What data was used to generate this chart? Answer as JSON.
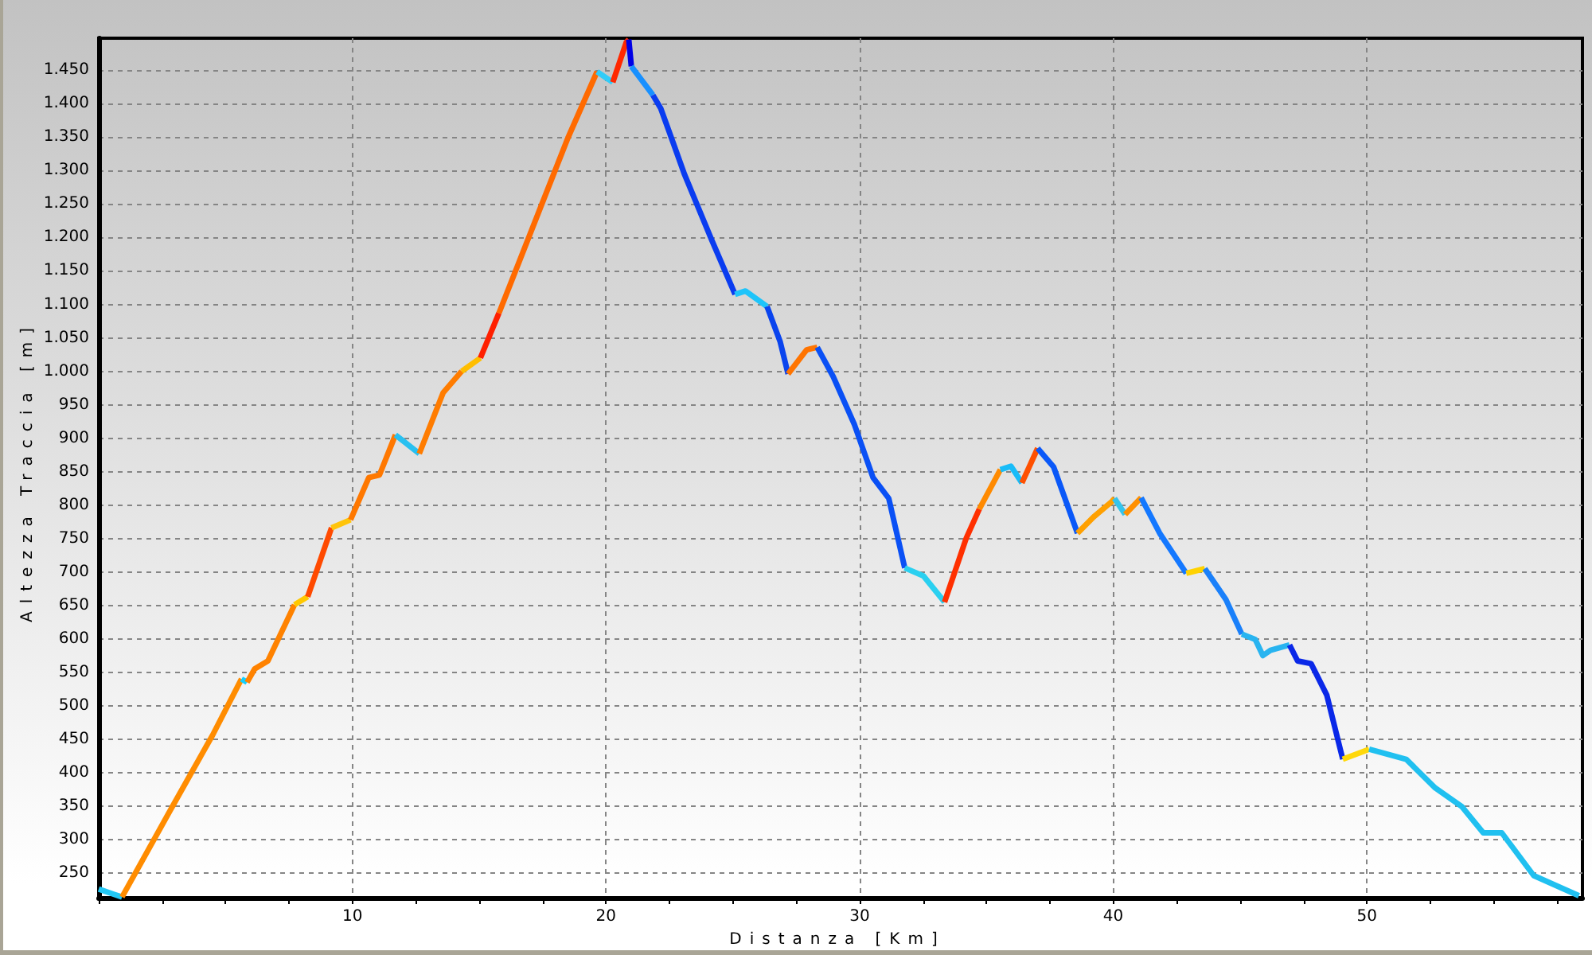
{
  "chart_data": {
    "type": "line",
    "xlabel": "Distanza [Km]",
    "ylabel": "Altezza Traccia [m]",
    "xlim": [
      0,
      58.5
    ],
    "ylim": [
      213,
      1498
    ],
    "xticks": [
      {
        "value": 0,
        "label": null
      },
      {
        "value": 2.5,
        "label": null
      },
      {
        "value": 5,
        "label": null
      },
      {
        "value": 7.5,
        "label": null
      },
      10,
      {
        "value": 12.5,
        "label": null
      },
      {
        "value": 15,
        "label": null
      },
      {
        "value": 17.5,
        "label": null
      },
      20,
      {
        "value": 22.5,
        "label": null
      },
      {
        "value": 25,
        "label": null
      },
      {
        "value": 27.5,
        "label": null
      },
      30,
      {
        "value": 32.5,
        "label": null
      },
      {
        "value": 35,
        "label": null
      },
      {
        "value": 37.5,
        "label": null
      },
      40,
      {
        "value": 42.5,
        "label": null
      },
      {
        "value": 45,
        "label": null
      },
      {
        "value": 47.5,
        "label": null
      },
      50,
      {
        "value": 52.5,
        "label": null
      },
      {
        "value": 55,
        "label": null
      },
      {
        "value": 57.5,
        "label": null
      }
    ],
    "yticks": [
      250,
      300,
      350,
      400,
      450,
      500,
      550,
      600,
      650,
      700,
      750,
      800,
      850,
      900,
      950,
      {
        "value": 1000,
        "label": "1.000"
      },
      {
        "value": 1050,
        "label": "1.050"
      },
      {
        "value": 1100,
        "label": "1.100"
      },
      {
        "value": 1150,
        "label": "1.150"
      },
      {
        "value": 1200,
        "label": "1.200"
      },
      {
        "value": 1250,
        "label": "1.250"
      },
      {
        "value": 1300,
        "label": "1.300"
      },
      {
        "value": 1350,
        "label": "1.350"
      },
      {
        "value": 1400,
        "label": "1.400"
      },
      {
        "value": 1450,
        "label": "1.450"
      }
    ],
    "grid": true,
    "marker": "none",
    "series": [
      {
        "color": "#22c8f5",
        "x": [
          0,
          0.6,
          0.92
        ],
        "values": [
          226,
          218,
          214
        ]
      },
      {
        "color": "#ff8c00",
        "x": [
          0.92,
          2.9,
          4.49,
          5.63
        ],
        "values": [
          214,
          349,
          456,
          540
        ]
      },
      {
        "color": "#10d0ff",
        "x": [
          5.63,
          5.85
        ],
        "values": [
          540,
          535
        ]
      },
      {
        "color": "#ff8200",
        "x": [
          5.85,
          6.15,
          6.67,
          7.72
        ],
        "values": [
          535,
          555,
          567,
          651
        ]
      },
      {
        "color": "#ffc800",
        "x": [
          7.72,
          8.24
        ],
        "values": [
          651,
          663
        ]
      },
      {
        "color": "#ff4a00",
        "x": [
          8.24,
          9.18
        ],
        "values": [
          663,
          766
        ]
      },
      {
        "color": "#ffc40a",
        "x": [
          9.18,
          9.93
        ],
        "values": [
          766,
          778
        ]
      },
      {
        "color": "#ff7800",
        "x": [
          9.93,
          10.65,
          11.07,
          11.7
        ],
        "values": [
          778,
          841,
          845,
          905
        ]
      },
      {
        "color": "#28c0f0",
        "x": [
          11.7,
          12.64
        ],
        "values": [
          905,
          877
        ]
      },
      {
        "color": "#ff7c00",
        "x": [
          12.64,
          13.58,
          14.31
        ],
        "values": [
          877,
          968,
          1000
        ]
      },
      {
        "color": "#ffbe00",
        "x": [
          14.31,
          15.05
        ],
        "values": [
          1000,
          1020
        ]
      },
      {
        "color": "#ff2000",
        "x": [
          15.05,
          15.78
        ],
        "values": [
          1020,
          1087
        ]
      },
      {
        "color": "#ff6a00",
        "x": [
          15.78,
          18.5,
          19.65
        ],
        "values": [
          1087,
          1349,
          1448
        ]
      },
      {
        "color": "#30ccf8",
        "x": [
          19.65,
          20.27
        ],
        "values": [
          1448,
          1432
        ]
      },
      {
        "color": "#ff2800",
        "x": [
          20.27,
          20.8,
          20.9
        ],
        "values": [
          1432,
          1492,
          1496
        ]
      },
      {
        "color": "#0000e6",
        "x": [
          20.9,
          21.0
        ],
        "values": [
          1496,
          1456
        ]
      },
      {
        "color": "#1890ff",
        "x": [
          21.0,
          21.85
        ],
        "values": [
          1456,
          1413
        ]
      },
      {
        "color": "#0a3cf0",
        "x": [
          21.85,
          22.16,
          22.58,
          23.1,
          24.15,
          25.09
        ],
        "values": [
          1413,
          1393,
          1349,
          1294,
          1198,
          1115
        ]
      },
      {
        "color": "#1ec4fa",
        "x": [
          25.09,
          25.5,
          26.35
        ],
        "values": [
          1115,
          1120,
          1097
        ]
      },
      {
        "color": "#0a44ee",
        "x": [
          26.35,
          26.87,
          27.18
        ],
        "values": [
          1097,
          1044,
          996
        ]
      },
      {
        "color": "#ff7400",
        "x": [
          27.18,
          27.91,
          28.33
        ],
        "values": [
          996,
          1032,
          1036
        ]
      },
      {
        "color": "#0a50f5",
        "x": [
          28.33,
          28.96,
          29.8,
          30.53,
          31.15,
          31.78
        ],
        "values": [
          1036,
          992,
          920,
          841,
          810,
          706
        ]
      },
      {
        "color": "#2ad0f0",
        "x": [
          31.78,
          32.52,
          33.35
        ],
        "values": [
          706,
          694,
          655
        ]
      },
      {
        "color": "#ff3000",
        "x": [
          33.35,
          34.2,
          34.72
        ],
        "values": [
          655,
          750,
          794
        ]
      },
      {
        "color": "#ff8a00",
        "x": [
          34.72,
          35.55
        ],
        "values": [
          794,
          853
        ]
      },
      {
        "color": "#18bcf8",
        "x": [
          35.55,
          35.97,
          36.4
        ],
        "values": [
          853,
          858,
          833
        ]
      },
      {
        "color": "#ff5000",
        "x": [
          36.4,
          37.02
        ],
        "values": [
          833,
          885
        ]
      },
      {
        "color": "#0a58f8",
        "x": [
          37.02,
          37.65,
          38.59
        ],
        "values": [
          885,
          857,
          758
        ]
      },
      {
        "color": "#ffa000",
        "x": [
          38.59,
          39.22,
          39.94,
          40.05
        ],
        "values": [
          758,
          782,
          805,
          810
        ]
      },
      {
        "color": "#34c4ec",
        "x": [
          40.05,
          40.47
        ],
        "values": [
          810,
          786
        ]
      },
      {
        "color": "#ff9000",
        "x": [
          40.47,
          41.1
        ],
        "values": [
          786,
          811
        ]
      },
      {
        "color": "#1478ff",
        "x": [
          41.1,
          41.83,
          42.88
        ],
        "values": [
          811,
          758,
          698
        ]
      },
      {
        "color": "#ffd200",
        "x": [
          42.88,
          43.61
        ],
        "values": [
          698,
          705
        ]
      },
      {
        "color": "#1a80fa",
        "x": [
          43.61,
          44.44,
          45.07
        ],
        "values": [
          705,
          659,
          607
        ]
      },
      {
        "color": "#28b4f0",
        "x": [
          45.07,
          45.6,
          45.9,
          46.2,
          46.95
        ],
        "values": [
          607,
          599,
          575,
          583,
          591
        ]
      },
      {
        "color": "#0a28e8",
        "x": [
          46.95,
          47.27,
          47.8,
          48.42,
          49.05
        ],
        "values": [
          591,
          567,
          563,
          516,
          420
        ]
      },
      {
        "color": "#ffd80a",
        "x": [
          49.05,
          50.09
        ],
        "values": [
          420,
          435
        ]
      },
      {
        "color": "#20c0f0",
        "x": [
          50.09,
          51.55,
          52.7,
          53.75,
          54.59,
          55.32,
          56.58,
          58.36
        ],
        "values": [
          435,
          420,
          377,
          349,
          310,
          310,
          246,
          216
        ]
      }
    ]
  }
}
